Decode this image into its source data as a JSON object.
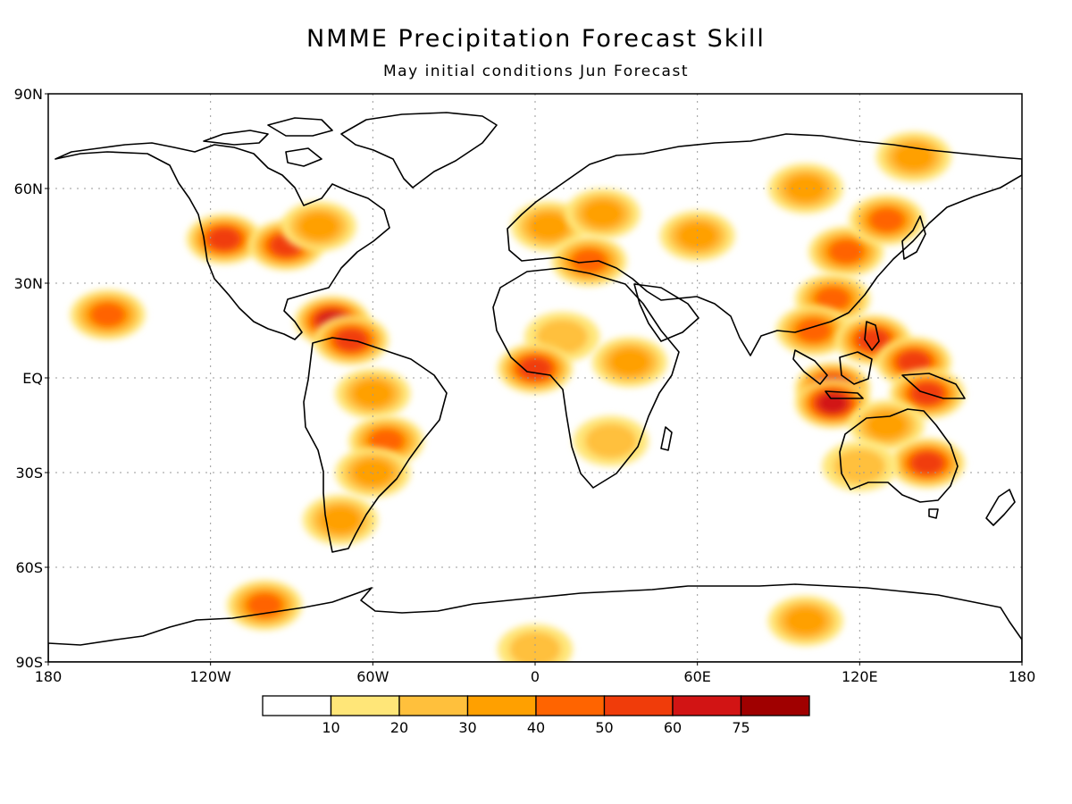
{
  "title": "NMME Precipitation Forecast Skill",
  "subtitle": "May initial conditions  Jun Forecast",
  "map": {
    "lat_labels": [
      "90N",
      "60N",
      "30N",
      "EQ",
      "30S",
      "60S",
      "90S"
    ],
    "lon_labels": [
      "180",
      "120W",
      "60W",
      "0",
      "60E",
      "120E",
      "180"
    ],
    "grid": true
  },
  "colorbar": {
    "labels": [
      "10",
      "20",
      "30",
      "40",
      "50",
      "60",
      "75"
    ],
    "colors": [
      "#ffffff",
      "#ffe678",
      "#ffc03c",
      "#ffa000",
      "#ff6400",
      "#f03c0a",
      "#d21414",
      "#a00000"
    ]
  },
  "skill_regions": [
    {
      "region": "Western North America",
      "lon": -115,
      "lat": 44,
      "level": 5
    },
    {
      "region": "Central North America",
      "lon": -92,
      "lat": 42,
      "level": 5
    },
    {
      "region": "Great Lakes",
      "lon": -80,
      "lat": 48,
      "level": 3
    },
    {
      "region": "Central America / Caribbean",
      "lon": -75,
      "lat": 18,
      "level": 6
    },
    {
      "region": "Southern Caribbean",
      "lon": -68,
      "lat": 12,
      "level": 5
    },
    {
      "region": "Hawaii",
      "lon": -158,
      "lat": 20,
      "level": 4
    },
    {
      "region": "Amazon",
      "lon": -60,
      "lat": -5,
      "level": 3
    },
    {
      "region": "Southern Brazil",
      "lon": -55,
      "lat": -20,
      "level": 4
    },
    {
      "region": "Argentina",
      "lon": -60,
      "lat": -30,
      "level": 3
    },
    {
      "region": "Southern Chile",
      "lon": -72,
      "lat": -45,
      "level": 3
    },
    {
      "region": "Western Europe",
      "lon": 5,
      "lat": 48,
      "level": 3
    },
    {
      "region": "Eastern Europe",
      "lon": 25,
      "lat": 52,
      "level": 3
    },
    {
      "region": "Mediterranean",
      "lon": 20,
      "lat": 37,
      "level": 4
    },
    {
      "region": "Sahel",
      "lon": 10,
      "lat": 13,
      "level": 2
    },
    {
      "region": "Gulf of Guinea",
      "lon": 0,
      "lat": 3,
      "level": 5
    },
    {
      "region": "East Africa",
      "lon": 35,
      "lat": 5,
      "level": 3
    },
    {
      "region": "Southern Africa",
      "lon": 28,
      "lat": -20,
      "level": 2
    },
    {
      "region": "Central Asia",
      "lon": 60,
      "lat": 45,
      "level": 3
    },
    {
      "region": "Siberia",
      "lon": 100,
      "lat": 60,
      "level": 3
    },
    {
      "region": "North China",
      "lon": 115,
      "lat": 40,
      "level": 4
    },
    {
      "region": "Northeast Asia",
      "lon": 130,
      "lat": 50,
      "level": 4
    },
    {
      "region": "South China",
      "lon": 110,
      "lat": 25,
      "level": 4
    },
    {
      "region": "Indochina",
      "lon": 103,
      "lat": 15,
      "level": 4
    },
    {
      "region": "Philippines",
      "lon": 125,
      "lat": 12,
      "level": 5
    },
    {
      "region": "Maritime Continent",
      "lon": 110,
      "lat": -3,
      "level": 6
    },
    {
      "region": "Java",
      "lon": 110,
      "lat": -8,
      "level": 6
    },
    {
      "region": "Western Pacific",
      "lon": 140,
      "lat": 5,
      "level": 5
    },
    {
      "region": "New Guinea",
      "lon": 145,
      "lat": -5,
      "level": 5
    },
    {
      "region": "Northern Australia",
      "lon": 130,
      "lat": -15,
      "level": 3
    },
    {
      "region": "Eastern Australia",
      "lon": 145,
      "lat": -27,
      "level": 5
    },
    {
      "region": "Western Australia",
      "lon": 120,
      "lat": -28,
      "level": 2
    },
    {
      "region": "Arctic Russia",
      "lon": 140,
      "lat": 70,
      "level": 3
    },
    {
      "region": "Antarctic Peninsula",
      "lon": -100,
      "lat": -72,
      "level": 4
    },
    {
      "region": "East Antarctica",
      "lon": 100,
      "lat": -77,
      "level": 3
    },
    {
      "region": "South Pole band",
      "lon": 0,
      "lat": -86,
      "level": 2
    }
  ]
}
